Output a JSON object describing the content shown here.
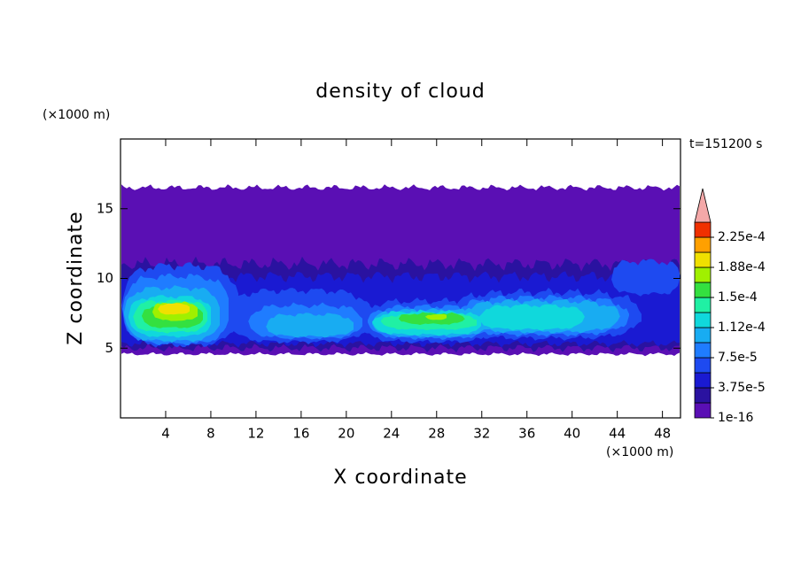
{
  "chart_data": {
    "type": "contour",
    "title": "density of cloud",
    "xlabel": "X coordinate",
    "ylabel": "Z coordinate",
    "xunit": "(×1000 m)",
    "yunit": "(×1000 m)",
    "annotation": "t=151200 s",
    "xlim": [
      0,
      49.6
    ],
    "ylim": [
      0,
      20
    ],
    "xticks": [
      4,
      8,
      12,
      16,
      20,
      24,
      28,
      32,
      36,
      40,
      44,
      48
    ],
    "yticks": [
      5,
      10,
      15
    ],
    "colorbar": {
      "levels": [
        1e-16,
        1.875e-05,
        3.75e-05,
        5.625e-05,
        7.5e-05,
        9.375e-05,
        0.0001125,
        0.00013125,
        0.00015,
        0.00016875,
        0.0001875,
        0.00020625,
        0.000225
      ],
      "colors": [
        "#5a0fb4",
        "#2a12a0",
        "#1a1ad2",
        "#1e4af0",
        "#1f7cff",
        "#18acf2",
        "#10d8dc",
        "#20f0a4",
        "#34e040",
        "#a0f000",
        "#f0e000",
        "#ffa000",
        "#f03000"
      ],
      "extend_color": "#f4a8a8",
      "ticks": [
        {
          "value": 1e-16,
          "label": "1e-16"
        },
        {
          "value": 3.75e-05,
          "label": "3.75e-5"
        },
        {
          "value": 7.5e-05,
          "label": "7.5e-5"
        },
        {
          "value": 0.0001125,
          "label": "1.12e-4"
        },
        {
          "value": 0.00015,
          "label": "1.5e-4"
        },
        {
          "value": 0.0001875,
          "label": "1.88e-4"
        },
        {
          "value": 0.000225,
          "label": "2.25e-4"
        }
      ]
    }
  }
}
